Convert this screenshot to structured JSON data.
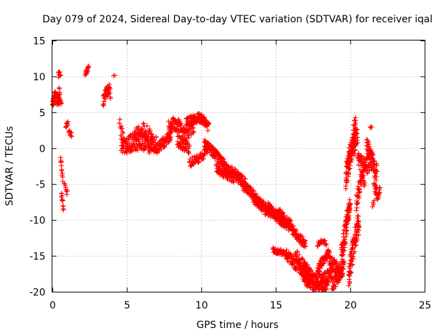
{
  "chart_data": {
    "type": "scatter",
    "title": "Day 079 of 2024, Sidereal Day-to-day VTEC variation (SDTVAR) for receiver iqal",
    "xlabel": "GPS time / hours",
    "ylabel": "SDTVAR / TECUs",
    "xlim": [
      0,
      25
    ],
    "ylim": [
      -20,
      15
    ],
    "xticks": [
      0,
      5,
      10,
      15,
      20,
      25
    ],
    "yticks": [
      -20,
      -15,
      -10,
      -5,
      0,
      5,
      10,
      15
    ],
    "grid": true,
    "marker": "+",
    "color": "#ff0000",
    "series": [
      {
        "name": "SDTVAR",
        "segments": [
          {
            "x0": 0.0,
            "x1": 0.5,
            "x": [
              0.0,
              0.1,
              0.2,
              0.3,
              0.4,
              0.5
            ],
            "y": [
              6.0,
              6.8,
              7.2,
              6.5,
              7.0,
              6.6
            ],
            "jitter": 0.8,
            "n": 60
          },
          {
            "x0": 0.4,
            "x1": 0.55,
            "x": [
              0.4,
              0.55
            ],
            "y": [
              10.2,
              10.5
            ],
            "jitter": 0.4,
            "n": 10
          },
          {
            "x0": 0.45,
            "x1": 0.6,
            "x": [
              0.45,
              0.6
            ],
            "y": [
              8.5,
              6.0
            ],
            "jitter": 0.5,
            "n": 10
          },
          {
            "x0": 0.55,
            "x1": 0.7,
            "x": [
              0.55,
              0.7
            ],
            "y": [
              -1.5,
              -4.5
            ],
            "jitter": 0.7,
            "n": 12
          },
          {
            "x0": 0.6,
            "x1": 0.75,
            "x": [
              0.6,
              0.75
            ],
            "y": [
              -6.5,
              -8.5
            ],
            "jitter": 0.6,
            "n": 12
          },
          {
            "x0": 0.8,
            "x1": 1.0,
            "x": [
              0.8,
              1.0
            ],
            "y": [
              -4.8,
              -6.2
            ],
            "jitter": 0.6,
            "n": 8
          },
          {
            "x0": 0.9,
            "x1": 1.05,
            "x": [
              0.9,
              1.05
            ],
            "y": [
              3.0,
              3.6
            ],
            "jitter": 0.4,
            "n": 8
          },
          {
            "x0": 1.1,
            "x1": 1.3,
            "x": [
              1.1,
              1.3
            ],
            "y": [
              2.4,
              1.8
            ],
            "jitter": 0.4,
            "n": 10
          },
          {
            "x0": 2.2,
            "x1": 2.45,
            "x": [
              2.2,
              2.45
            ],
            "y": [
              10.5,
              11.3
            ],
            "jitter": 0.5,
            "n": 14
          },
          {
            "x0": 3.4,
            "x1": 3.9,
            "x": [
              3.4,
              3.6,
              3.8,
              3.9
            ],
            "y": [
              6.5,
              7.5,
              8.5,
              7.2
            ],
            "jitter": 0.9,
            "n": 40
          },
          {
            "x0": 4.1,
            "x1": 4.2,
            "x": [
              4.1,
              4.2
            ],
            "y": [
              10.2,
              10.2
            ],
            "jitter": 0.1,
            "n": 2
          },
          {
            "x0": 4.5,
            "x1": 4.75,
            "x": [
              4.5,
              4.75
            ],
            "y": [
              3.8,
              2.4
            ],
            "jitter": 0.5,
            "n": 8
          },
          {
            "x0": 4.6,
            "x1": 7.0,
            "x": [
              4.6,
              5.0,
              5.5,
              6.0,
              6.5,
              7.0
            ],
            "y": [
              0.8,
              0.5,
              0.9,
              1.0,
              0.6,
              0.3
            ],
            "jitter": 1.3,
            "n": 180
          },
          {
            "x0": 5.5,
            "x1": 6.8,
            "x": [
              5.5,
              6.2,
              6.8
            ],
            "y": [
              2.0,
              2.8,
              1.2
            ],
            "jitter": 0.8,
            "n": 40
          },
          {
            "x0": 7.0,
            "x1": 8.0,
            "x": [
              7.0,
              7.5,
              8.0
            ],
            "y": [
              0.0,
              0.8,
              1.8
            ],
            "jitter": 0.8,
            "n": 60
          },
          {
            "x0": 7.8,
            "x1": 9.5,
            "x": [
              7.8,
              8.3,
              8.8,
              9.5
            ],
            "y": [
              2.8,
              3.5,
              2.0,
              2.8
            ],
            "jitter": 1.1,
            "n": 110
          },
          {
            "x0": 8.4,
            "x1": 9.2,
            "x": [
              8.4,
              8.8,
              9.2
            ],
            "y": [
              1.0,
              0.4,
              0.0
            ],
            "jitter": 0.8,
            "n": 50
          },
          {
            "x0": 9.0,
            "x1": 10.5,
            "x": [
              9.0,
              9.5,
              10.0,
              10.5
            ],
            "y": [
              3.5,
              4.0,
              4.2,
              3.0
            ],
            "jitter": 0.7,
            "n": 110
          },
          {
            "x0": 9.2,
            "x1": 10.4,
            "x": [
              9.2,
              9.8,
              10.4
            ],
            "y": [
              -2.0,
              -1.5,
              -0.5
            ],
            "jitter": 0.6,
            "n": 50
          },
          {
            "x0": 10.2,
            "x1": 11.5,
            "x": [
              10.2,
              10.8,
              11.5
            ],
            "y": [
              0.5,
              -0.5,
              -2.2
            ],
            "jitter": 0.7,
            "n": 110
          },
          {
            "x0": 11.0,
            "x1": 12.2,
            "x": [
              11.0,
              11.6,
              12.2
            ],
            "y": [
              -2.8,
              -3.6,
              -4.2
            ],
            "jitter": 0.6,
            "n": 70
          },
          {
            "x0": 11.5,
            "x1": 13.0,
            "x": [
              11.5,
              12.2,
              13.0
            ],
            "y": [
              -2.6,
              -3.6,
              -5.0
            ],
            "jitter": 0.8,
            "n": 110
          },
          {
            "x0": 12.8,
            "x1": 14.5,
            "x": [
              12.8,
              13.5,
              14.0,
              14.5
            ],
            "y": [
              -5.2,
              -6.5,
              -7.8,
              -8.5
            ],
            "jitter": 0.7,
            "n": 120
          },
          {
            "x0": 13.5,
            "x1": 15.5,
            "x": [
              13.5,
              14.3,
              15.0,
              15.5
            ],
            "y": [
              -7.0,
              -8.6,
              -9.3,
              -9.0
            ],
            "jitter": 0.7,
            "n": 90
          },
          {
            "x0": 14.5,
            "x1": 16.0,
            "x": [
              14.5,
              15.2,
              16.0
            ],
            "y": [
              -8.2,
              -9.5,
              -10.5
            ],
            "jitter": 0.6,
            "n": 90
          },
          {
            "x0": 15.0,
            "x1": 17.0,
            "x": [
              15.0,
              16.0,
              17.0
            ],
            "y": [
              -9.5,
              -11.0,
              -13.5
            ],
            "jitter": 0.7,
            "n": 130
          },
          {
            "x0": 14.8,
            "x1": 15.9,
            "x": [
              14.8,
              15.4,
              15.9
            ],
            "y": [
              -14.2,
              -14.5,
              -14.8
            ],
            "jitter": 0.4,
            "n": 45
          },
          {
            "x0": 15.7,
            "x1": 17.5,
            "x": [
              15.7,
              16.5,
              17.5
            ],
            "y": [
              -14.8,
              -16.5,
              -18.0
            ],
            "jitter": 0.8,
            "n": 110
          },
          {
            "x0": 16.3,
            "x1": 18.8,
            "x": [
              16.3,
              17.0,
              17.5,
              18.2,
              18.8
            ],
            "y": [
              -14.8,
              -16.8,
              -18.0,
              -18.2,
              -17.4
            ],
            "jitter": 0.9,
            "n": 140
          },
          {
            "x0": 16.8,
            "x1": 18.5,
            "x": [
              16.8,
              17.5,
              18.2,
              18.5
            ],
            "y": [
              -18.0,
              -19.3,
              -19.5,
              -18.9
            ],
            "jitter": 0.7,
            "n": 100
          },
          {
            "x0": 17.8,
            "x1": 18.6,
            "x": [
              17.8,
              18.2,
              18.6
            ],
            "y": [
              -17.0,
              -15.5,
              -14.5
            ],
            "jitter": 0.6,
            "n": 50
          },
          {
            "x0": 17.8,
            "x1": 18.4,
            "x": [
              17.8,
              18.1,
              18.4
            ],
            "y": [
              -13.4,
              -13.0,
              -13.2
            ],
            "jitter": 0.3,
            "n": 20
          },
          {
            "x0": 18.6,
            "x1": 19.5,
            "x": [
              18.6,
              19.0,
              19.5
            ],
            "y": [
              -15.5,
              -16.5,
              -17.5
            ],
            "jitter": 1.0,
            "n": 60
          },
          {
            "x0": 18.8,
            "x1": 19.6,
            "x": [
              18.8,
              19.2,
              19.6
            ],
            "y": [
              -19.0,
              -18.0,
              -16.0
            ],
            "jitter": 0.9,
            "n": 50
          },
          {
            "x0": 19.4,
            "x1": 20.0,
            "x": [
              19.4,
              19.7,
              20.0
            ],
            "y": [
              -15.0,
              -11.5,
              -7.0
            ],
            "jitter": 1.6,
            "n": 90
          },
          {
            "x0": 19.7,
            "x1": 20.4,
            "x": [
              19.7,
              20.0,
              20.4
            ],
            "y": [
              -4.0,
              -1.0,
              1.5
            ],
            "jitter": 1.8,
            "n": 110
          },
          {
            "x0": 19.9,
            "x1": 20.6,
            "x": [
              19.9,
              20.2,
              20.6
            ],
            "y": [
              -18.0,
              -14.0,
              -10.0
            ],
            "jitter": 1.8,
            "n": 90
          },
          {
            "x0": 20.2,
            "x1": 20.5,
            "x": [
              20.2,
              20.35,
              20.5
            ],
            "y": [
              2.0,
              3.2,
              1.0
            ],
            "jitter": 1.2,
            "n": 25
          },
          {
            "x0": 20.4,
            "x1": 21.0,
            "x": [
              20.4,
              20.7,
              21.0
            ],
            "y": [
              -7.5,
              -5.0,
              -4.0
            ],
            "jitter": 1.4,
            "n": 50
          },
          {
            "x0": 20.5,
            "x1": 21.3,
            "x": [
              20.5,
              20.9,
              21.3
            ],
            "y": [
              -1.5,
              -2.5,
              -2.2
            ],
            "jitter": 1.2,
            "n": 60
          },
          {
            "x0": 21.1,
            "x1": 21.8,
            "x": [
              21.1,
              21.4,
              21.8
            ],
            "y": [
              0.5,
              -1.5,
              -3.5
            ],
            "jitter": 1.4,
            "n": 70
          },
          {
            "x0": 21.6,
            "x1": 22.0,
            "x": [
              21.6,
              21.8,
              22.0
            ],
            "y": [
              -5.0,
              -6.5,
              -5.5
            ],
            "jitter": 1.0,
            "n": 30
          },
          {
            "x0": 21.35,
            "x1": 21.45,
            "x": [
              21.35,
              21.45
            ],
            "y": [
              2.8,
              3.0
            ],
            "jitter": 0.2,
            "n": 3
          },
          {
            "x0": 21.5,
            "x1": 21.6,
            "x": [
              21.5,
              21.6
            ],
            "y": [
              -8.0,
              -7.6
            ],
            "jitter": 0.3,
            "n": 4
          }
        ]
      }
    ]
  }
}
